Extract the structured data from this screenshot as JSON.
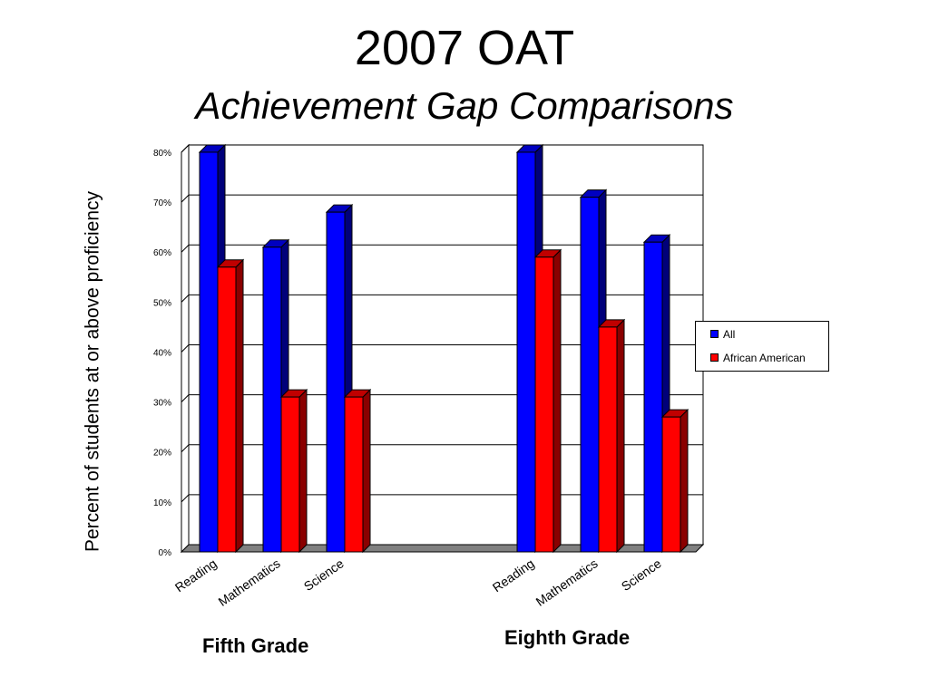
{
  "chart_data": {
    "type": "bar",
    "title": "2007 OAT",
    "subtitle": "Achievement Gap Comparisons",
    "ylabel": "Percent of students at or above proficiency",
    "ylim": [
      0,
      80
    ],
    "yticks": [
      "0%",
      "10%",
      "20%",
      "30%",
      "40%",
      "50%",
      "60%",
      "70%",
      "80%"
    ],
    "grid": true,
    "legend_position": "right",
    "groups": [
      {
        "label": "Fifth Grade",
        "categories": [
          "Reading",
          "Mathematics",
          "Science"
        ]
      },
      {
        "label": "Eighth Grade",
        "categories": [
          "Reading",
          "Mathematics",
          "Science"
        ]
      }
    ],
    "series": [
      {
        "name": "All",
        "color": "#0000ff",
        "values": [
          80,
          61,
          68,
          80,
          71,
          62
        ]
      },
      {
        "name": "African American",
        "color": "#ff0000",
        "values": [
          57,
          31,
          31,
          59,
          45,
          27
        ]
      }
    ]
  }
}
